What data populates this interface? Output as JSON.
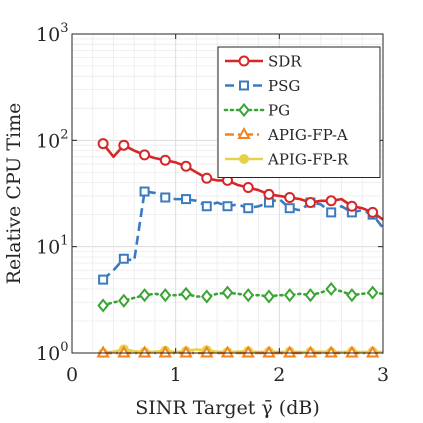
{
  "chart_data": {
    "type": "line",
    "xlabel": "SINR Target γ̄ (dB)",
    "ylabel": "Relative CPU Time",
    "x_scale": "linear",
    "y_scale": "log",
    "xlim": [
      0,
      3
    ],
    "ylim": [
      1,
      1000
    ],
    "x_ticks": [
      0,
      1,
      2,
      3
    ],
    "x_tick_labels": [
      "0",
      "1",
      "2",
      "3"
    ],
    "y_ticks": [
      1,
      10,
      100,
      1000
    ],
    "y_tick_labels": [
      {
        "base": "10",
        "exp": "0"
      },
      {
        "base": "10",
        "exp": "1"
      },
      {
        "base": "10",
        "exp": "2"
      },
      {
        "base": "10",
        "exp": "3"
      }
    ],
    "grid": true,
    "legend_position": "top-right",
    "x": [
      0.3,
      0.4,
      0.5,
      0.6,
      0.7,
      0.8,
      0.9,
      1.0,
      1.1,
      1.2,
      1.3,
      1.4,
      1.5,
      1.6,
      1.7,
      1.8,
      1.9,
      2.0,
      2.1,
      2.2,
      2.3,
      2.4,
      2.5,
      2.6,
      2.7,
      2.8,
      2.9,
      3.0
    ],
    "series": [
      {
        "name": "SDR",
        "color": "#d62728",
        "line": "solid",
        "marker": "circle",
        "values": [
          93,
          70,
          90,
          80,
          73,
          68,
          65,
          62,
          57,
          50,
          44,
          42,
          42,
          38,
          36,
          34,
          31,
          30,
          29,
          28,
          26,
          27,
          27,
          28,
          24,
          23,
          21,
          18
        ]
      },
      {
        "name": "PSG",
        "color": "#3a7bbf",
        "line": "dashed",
        "marker": "square",
        "values": [
          4.9,
          6.0,
          7.7,
          7.4,
          33,
          32,
          29,
          28,
          28,
          27,
          24,
          26,
          24,
          25,
          23,
          24,
          26,
          28,
          23,
          22,
          26,
          25,
          21,
          24,
          21,
          22,
          20,
          15
        ]
      },
      {
        "name": "PG",
        "color": "#3aa535",
        "line": "dotted",
        "marker": "diamond",
        "values": [
          2.8,
          3.0,
          3.1,
          3.3,
          3.5,
          3.6,
          3.5,
          3.5,
          3.6,
          3.4,
          3.4,
          3.6,
          3.7,
          3.6,
          3.5,
          3.5,
          3.4,
          3.5,
          3.5,
          3.6,
          3.5,
          3.7,
          4.0,
          3.8,
          3.5,
          3.6,
          3.7,
          3.6
        ]
      },
      {
        "name": "APIG-FP-A",
        "color": "#f5821f",
        "line": "dashdot",
        "marker": "triangle",
        "values": [
          1.0,
          1.0,
          1.0,
          1.0,
          1.0,
          1.0,
          1.0,
          1.0,
          1.0,
          1.0,
          1.0,
          1.0,
          1.0,
          1.0,
          1.0,
          1.0,
          1.0,
          1.0,
          1.0,
          1.0,
          1.0,
          1.0,
          1.0,
          1.0,
          1.0,
          1.0,
          1.0,
          1.0
        ]
      },
      {
        "name": "APIG-FP-R",
        "color": "#e8d14a",
        "line": "solid",
        "marker": "dot",
        "values": [
          1.0,
          1.03,
          1.08,
          1.04,
          1.02,
          1.03,
          1.05,
          1.02,
          1.04,
          1.08,
          1.06,
          1.03,
          1.02,
          1.03,
          1.04,
          1.02,
          1.03,
          1.02,
          1.03,
          1.02,
          1.02,
          1.03,
          1.02,
          1.02,
          1.03,
          1.02,
          1.03,
          1.02
        ]
      }
    ]
  }
}
